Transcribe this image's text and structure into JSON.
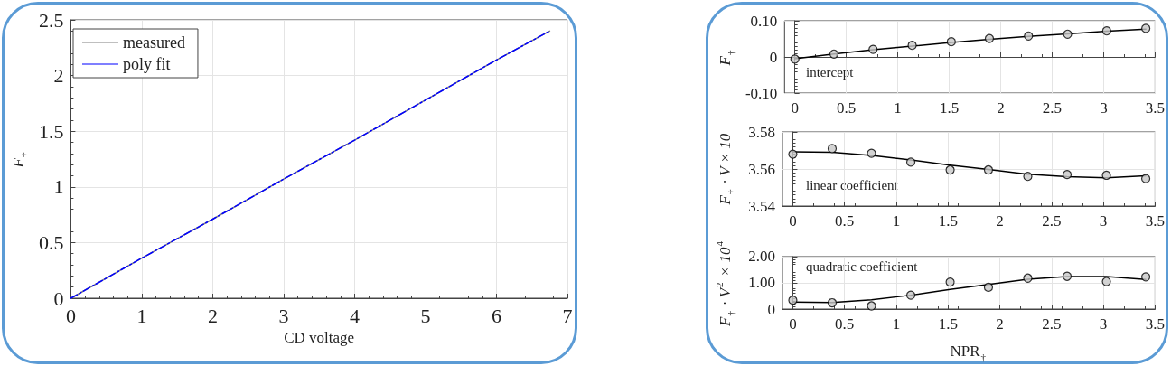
{
  "chart_data": [
    {
      "type": "line",
      "xlabel": "CD voltage",
      "ylabel": "F$_{†}$",
      "x": [
        0,
        1,
        2,
        3,
        4,
        5,
        6,
        6.75
      ],
      "series": [
        {
          "name": "measured",
          "color": "#808080",
          "line_style": "solid",
          "values": [
            0,
            0.36,
            0.71,
            1.07,
            1.42,
            1.78,
            2.14,
            2.4
          ]
        },
        {
          "name": "poly fit",
          "color": "#0000ff",
          "line_style": "dashed",
          "values": [
            0,
            0.36,
            0.71,
            1.07,
            1.42,
            1.78,
            2.14,
            2.4
          ]
        }
      ],
      "xlim": [
        0,
        7
      ],
      "xticks": [
        0,
        1,
        2,
        3,
        4,
        5,
        6,
        7
      ],
      "ylim": [
        0,
        2.5
      ],
      "yticks": [
        0,
        0.5,
        1,
        1.5,
        2,
        2.5
      ],
      "grid": true,
      "legend": "top left",
      "marker": "none"
    },
    {
      "type": "scatter",
      "ylabel": "F$_{†}$",
      "annotations": [
        "intercept"
      ],
      "x": [
        0,
        0.38,
        0.76,
        1.14,
        1.52,
        1.89,
        2.27,
        2.65,
        3.03,
        3.41
      ],
      "series": [
        {
          "type": "scatter",
          "color": "#000000",
          "marker": "circle",
          "values": [
            -0.006,
            0.008,
            0.021,
            0.032,
            0.042,
            0.051,
            0.058,
            0.063,
            0.072,
            0.079
          ]
        },
        {
          "type": "line",
          "color": "#000000",
          "marker": "none",
          "values": [
            -0.005,
            0.008,
            0.02,
            0.03,
            0.04,
            0.049,
            0.057,
            0.064,
            0.071,
            0.077
          ]
        }
      ],
      "xlim": [
        -0.1,
        3.5
      ],
      "xticks": [
        0,
        0.5,
        1,
        1.5,
        2,
        2.5,
        3,
        3.5
      ],
      "ylim": [
        -0.1,
        0.1
      ],
      "yticks": [
        {
          "value": -0.1,
          "label": "-0.10"
        },
        0,
        {
          "value": 0.1,
          "label": "0.10"
        }
      ],
      "grid": true
    },
    {
      "type": "scatter",
      "ylabel": "F$_{†}$ · V × 10",
      "annotations": [
        "linear coefficient"
      ],
      "x": [
        0,
        0.38,
        0.76,
        1.14,
        1.52,
        1.89,
        2.27,
        2.65,
        3.03,
        3.41
      ],
      "series": [
        {
          "type": "scatter",
          "color": "#000000",
          "marker": "circle",
          "values": [
            3.568,
            3.571,
            3.5685,
            3.5637,
            3.5595,
            3.5595,
            3.556,
            3.557,
            3.5566,
            3.5548
          ]
        },
        {
          "type": "line",
          "color": "#000000",
          "marker": "none",
          "values": [
            3.5693,
            3.569,
            3.5673,
            3.5649,
            3.5621,
            3.5597,
            3.5572,
            3.5558,
            3.5553,
            3.5563
          ]
        }
      ],
      "xlim": [
        -0.1,
        3.5
      ],
      "xticks": [
        0,
        0.5,
        1,
        1.5,
        2,
        2.5,
        3,
        3.5
      ],
      "ylim": [
        3.54,
        3.58
      ],
      "yticks": [
        3.54,
        3.56,
        3.58
      ],
      "grid": true
    },
    {
      "type": "scatter",
      "xlabel": "NPR$_{†}$",
      "ylabel": "F$_{†}$ · V$^{2}$ × 10$^{4}$",
      "annotations": [
        "quadratic coefficient"
      ],
      "x": [
        0,
        0.38,
        0.76,
        1.14,
        1.52,
        1.89,
        2.27,
        2.65,
        3.03,
        3.41
      ],
      "series": [
        {
          "type": "scatter",
          "color": "#000000",
          "marker": "circle",
          "values": [
            0.34,
            0.24,
            0.12,
            0.53,
            1.03,
            0.83,
            1.18,
            1.25,
            1.05,
            1.23
          ]
        },
        {
          "type": "line",
          "color": "#000000",
          "marker": "none",
          "values": [
            0.27,
            0.25,
            0.35,
            0.53,
            0.75,
            0.94,
            1.14,
            1.24,
            1.24,
            1.13
          ]
        }
      ],
      "xlim": [
        -0.1,
        3.5
      ],
      "xticks": [
        0,
        0.5,
        1,
        1.5,
        2,
        2.5,
        3,
        3.5
      ],
      "ylim": [
        0,
        2
      ],
      "yticks": [
        0,
        {
          "value": 1,
          "label": "1.00"
        },
        {
          "value": 2,
          "label": "2.00"
        }
      ],
      "grid": true
    }
  ]
}
